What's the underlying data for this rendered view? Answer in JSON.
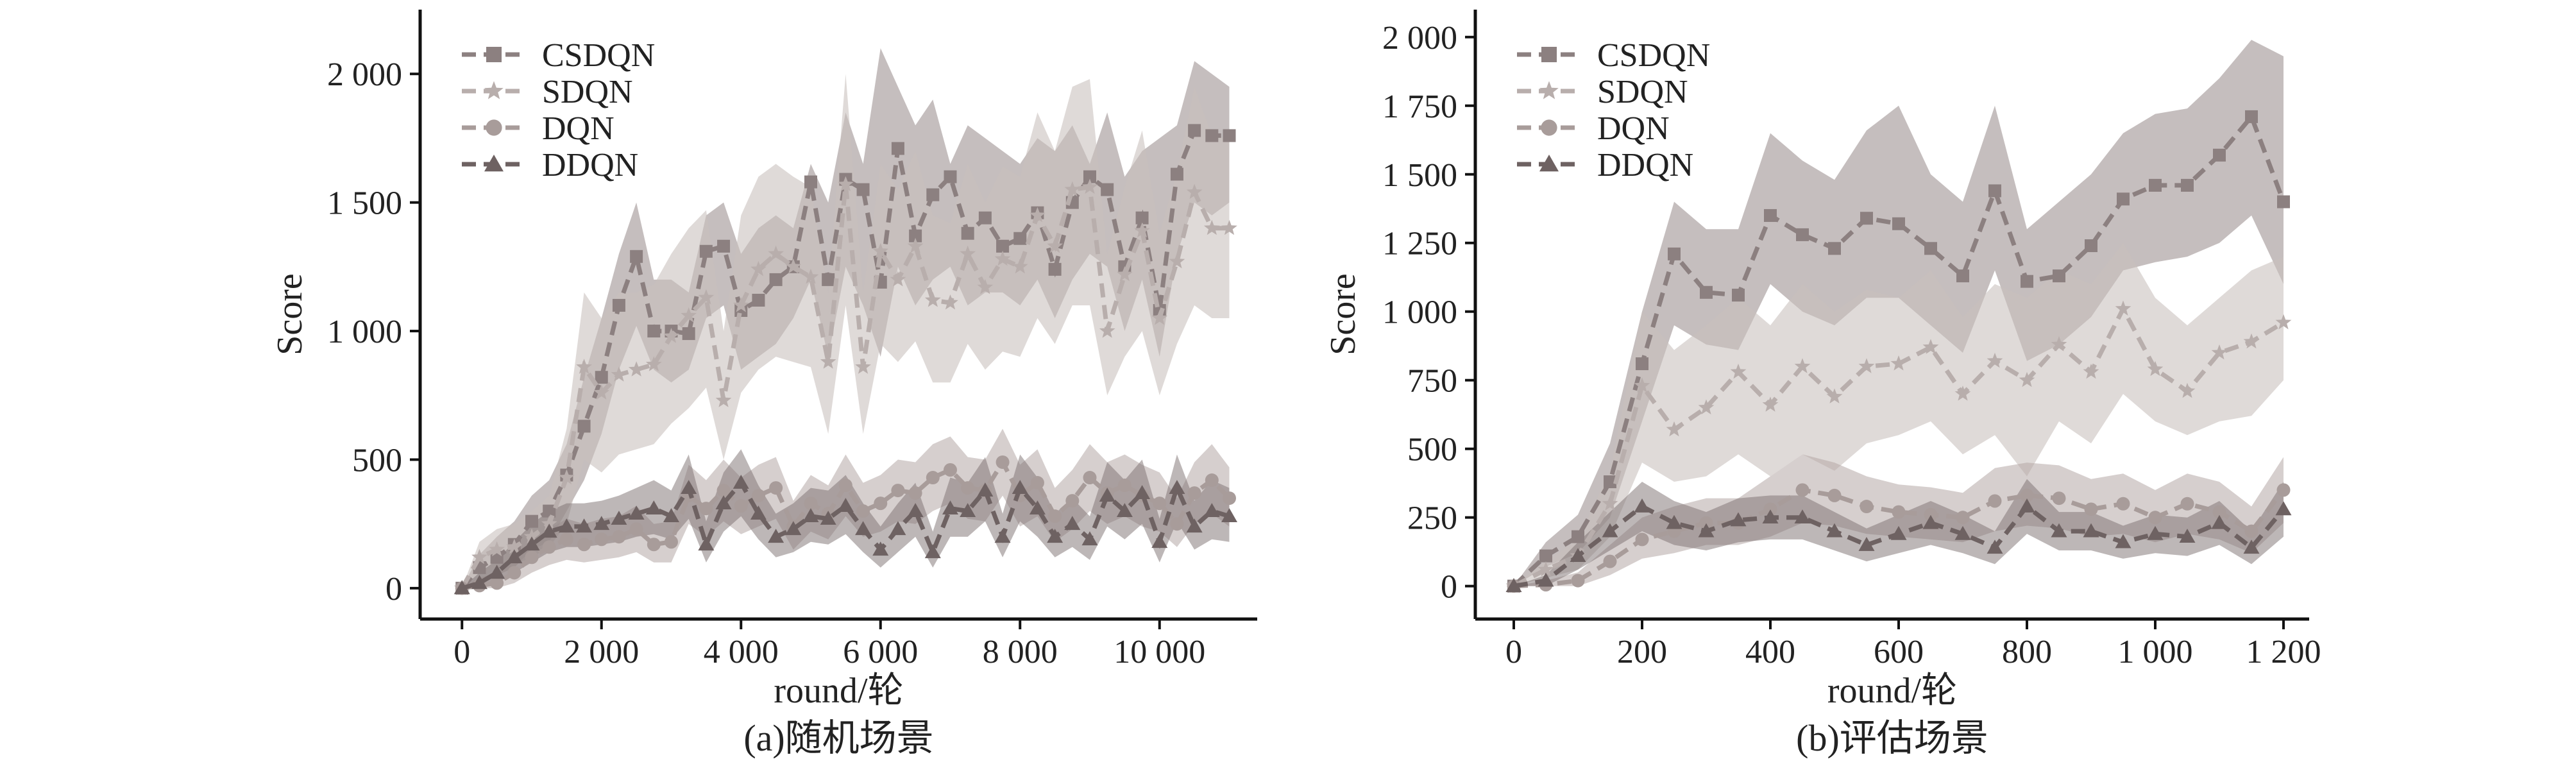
{
  "chart_data": [
    {
      "type": "line",
      "caption": "(a)随机场景",
      "xlabel": "round/轮",
      "ylabel": "Score",
      "xlim": [
        -600,
        11400
      ],
      "ylim": [
        -120,
        2250
      ],
      "xticks": [
        0,
        2000,
        4000,
        6000,
        8000,
        10000
      ],
      "xtick_labels": [
        "0",
        "2 000",
        "4 000",
        "6 000",
        "8 000",
        "10 000"
      ],
      "yticks": [
        0,
        500,
        1000,
        1500,
        2000
      ],
      "ytick_labels": [
        "0",
        "500",
        "1 000",
        "1 500",
        "2 000"
      ],
      "legend": "top-left",
      "x": [
        0,
        250,
        500,
        750,
        1000,
        1250,
        1500,
        1750,
        2000,
        2250,
        2500,
        2750,
        3000,
        3250,
        3500,
        3750,
        4000,
        4250,
        4500,
        4750,
        5000,
        5250,
        5500,
        5750,
        6000,
        6250,
        6500,
        6750,
        7000,
        7250,
        7500,
        7750,
        8000,
        8250,
        8500,
        8750,
        9000,
        9250,
        9500,
        9750,
        10000,
        10250,
        10500,
        10750,
        11000
      ],
      "series": [
        {
          "name": "CSDQN",
          "marker": "square",
          "color": "#8c8080",
          "band": "#a29696",
          "band_opacity": 0.62,
          "values": [
            0,
            80,
            120,
            170,
            260,
            300,
            440,
            630,
            820,
            1100,
            1290,
            1000,
            1000,
            990,
            1310,
            1330,
            1080,
            1120,
            1200,
            1250,
            1580,
            1200,
            1590,
            1550,
            1190,
            1710,
            1370,
            1530,
            1600,
            1380,
            1440,
            1330,
            1360,
            1460,
            1240,
            1500,
            1600,
            1550,
            1250,
            1440,
            1080,
            1610,
            1780,
            1760,
            1760
          ],
          "band_low": [
            0,
            20,
            50,
            80,
            150,
            180,
            300,
            420,
            600,
            850,
            1020,
            850,
            800,
            850,
            1050,
            1100,
            850,
            900,
            950,
            1050,
            1200,
            900,
            1250,
            1100,
            900,
            1250,
            1100,
            1200,
            1250,
            1100,
            1150,
            1150,
            1100,
            1200,
            1050,
            1200,
            1300,
            1250,
            1000,
            1200,
            900,
            1300,
            1500,
            1450,
            1500
          ],
          "band_high": [
            0,
            130,
            200,
            260,
            360,
            420,
            560,
            820,
            1050,
            1300,
            1500,
            1200,
            1200,
            1150,
            1450,
            1500,
            1300,
            1400,
            1450,
            1400,
            1650,
            1500,
            1850,
            1650,
            2100,
            1950,
            1800,
            1900,
            1650,
            1800,
            1750,
            1700,
            1650,
            1750,
            1700,
            1800,
            1650,
            1850,
            1600,
            1700,
            1750,
            1800,
            2050,
            2000,
            1950
          ]
        },
        {
          "name": "SDQN",
          "marker": "star",
          "color": "#b8aeac",
          "band": "#c8bfbc",
          "band_opacity": 0.58,
          "values": [
            0,
            120,
            150,
            160,
            200,
            250,
            430,
            860,
            760,
            830,
            850,
            870,
            980,
            1060,
            1130,
            730,
            1100,
            1240,
            1300,
            1250,
            1210,
            880,
            1570,
            860,
            1310,
            1200,
            1330,
            1120,
            1110,
            1300,
            1170,
            1280,
            1250,
            1450,
            1330,
            1550,
            1560,
            1000,
            1220,
            1390,
            1050,
            1270,
            1540,
            1400,
            1400
          ],
          "band_low": [
            0,
            60,
            80,
            90,
            120,
            160,
            250,
            500,
            450,
            520,
            540,
            560,
            640,
            700,
            780,
            500,
            760,
            850,
            900,
            880,
            860,
            600,
            1100,
            600,
            950,
            880,
            960,
            800,
            800,
            950,
            850,
            920,
            900,
            1050,
            950,
            1100,
            1100,
            750,
            900,
            1000,
            750,
            950,
            1100,
            1050,
            1050
          ],
          "band_high": [
            0,
            180,
            230,
            250,
            300,
            360,
            620,
            1150,
            1050,
            1150,
            1150,
            1180,
            1300,
            1400,
            1470,
            1000,
            1450,
            1600,
            1650,
            1600,
            1560,
            1150,
            2000,
            1150,
            1650,
            1550,
            1700,
            1450,
            1420,
            1650,
            1500,
            1640,
            1600,
            1850,
            1700,
            1950,
            1980,
            1300,
            1560,
            1780,
            1380,
            1620,
            1950,
            1760,
            1750
          ]
        },
        {
          "name": "DQN",
          "marker": "circle",
          "color": "#a89c9a",
          "band": "#b4a8a6",
          "band_opacity": 0.55,
          "values": [
            0,
            10,
            20,
            60,
            120,
            160,
            190,
            170,
            190,
            200,
            230,
            170,
            180,
            360,
            310,
            380,
            320,
            360,
            390,
            240,
            330,
            290,
            400,
            300,
            330,
            380,
            370,
            430,
            460,
            390,
            380,
            490,
            360,
            410,
            280,
            340,
            430,
            370,
            400,
            360,
            330,
            250,
            370,
            420,
            350
          ],
          "band_low": [
            0,
            0,
            0,
            20,
            60,
            90,
            110,
            100,
            110,
            120,
            140,
            100,
            100,
            250,
            200,
            260,
            210,
            240,
            270,
            150,
            220,
            190,
            280,
            200,
            220,
            260,
            250,
            300,
            330,
            270,
            260,
            360,
            240,
            280,
            180,
            230,
            300,
            250,
            280,
            240,
            220,
            160,
            250,
            290,
            240
          ],
          "band_high": [
            0,
            40,
            60,
            110,
            180,
            230,
            270,
            250,
            270,
            280,
            320,
            250,
            260,
            480,
            420,
            500,
            430,
            480,
            510,
            340,
            440,
            400,
            520,
            410,
            440,
            500,
            490,
            560,
            590,
            510,
            500,
            620,
            480,
            540,
            390,
            460,
            560,
            490,
            520,
            480,
            450,
            350,
            490,
            560,
            470
          ]
        },
        {
          "name": "DDQN",
          "marker": "triangle",
          "color": "#6e6262",
          "band": "#7c7070",
          "band_opacity": 0.5,
          "values": [
            0,
            20,
            60,
            120,
            170,
            220,
            240,
            240,
            250,
            270,
            290,
            310,
            280,
            390,
            170,
            330,
            410,
            290,
            200,
            230,
            280,
            270,
            320,
            230,
            150,
            230,
            300,
            140,
            310,
            300,
            380,
            200,
            390,
            310,
            200,
            250,
            190,
            360,
            300,
            370,
            180,
            390,
            240,
            300,
            280
          ],
          "band_low": [
            0,
            0,
            20,
            60,
            100,
            140,
            160,
            160,
            170,
            180,
            200,
            210,
            190,
            270,
            100,
            220,
            280,
            190,
            120,
            140,
            180,
            170,
            210,
            140,
            80,
            140,
            200,
            80,
            200,
            200,
            260,
            120,
            260,
            200,
            120,
            160,
            110,
            240,
            190,
            250,
            100,
            260,
            150,
            190,
            180
          ],
          "band_high": [
            0,
            60,
            110,
            180,
            250,
            300,
            330,
            330,
            340,
            360,
            390,
            420,
            380,
            520,
            260,
            450,
            540,
            400,
            290,
            330,
            390,
            380,
            440,
            330,
            240,
            330,
            410,
            220,
            430,
            410,
            510,
            290,
            520,
            430,
            290,
            350,
            280,
            490,
            420,
            500,
            270,
            520,
            340,
            420,
            390
          ]
        }
      ]
    },
    {
      "type": "line",
      "caption": "(b)评估场景",
      "xlabel": "round/轮",
      "ylabel": "Score",
      "xlim": [
        -60,
        1240
      ],
      "ylim": [
        -120,
        2100
      ],
      "xticks": [
        0,
        200,
        400,
        600,
        800,
        1000,
        1200
      ],
      "xtick_labels": [
        "0",
        "200",
        "400",
        "600",
        "800",
        "1 000",
        "1 200"
      ],
      "yticks": [
        0,
        250,
        500,
        750,
        1000,
        1250,
        1500,
        1750,
        2000
      ],
      "ytick_labels": [
        "0",
        "250",
        "500",
        "750",
        "1 000",
        "1 250",
        "1 500",
        "1 750",
        "2 000"
      ],
      "legend": "top-left",
      "x": [
        0,
        50,
        100,
        150,
        200,
        250,
        300,
        350,
        400,
        450,
        500,
        550,
        600,
        650,
        700,
        750,
        800,
        850,
        900,
        950,
        1000,
        1050,
        1100,
        1150,
        1200
      ],
      "series": [
        {
          "name": "CSDQN",
          "marker": "square",
          "color": "#8c8080",
          "band": "#a29696",
          "band_opacity": 0.62,
          "values": [
            0,
            110,
            180,
            380,
            810,
            1210,
            1070,
            1060,
            1350,
            1280,
            1230,
            1340,
            1320,
            1230,
            1130,
            1440,
            1110,
            1130,
            1240,
            1410,
            1460,
            1460,
            1570,
            1710,
            1400
          ],
          "band_low": [
            0,
            70,
            120,
            250,
            600,
            950,
            880,
            860,
            1100,
            1000,
            950,
            1050,
            1050,
            950,
            850,
            1150,
            820,
            880,
            980,
            1150,
            1180,
            1200,
            1250,
            1350,
            1100
          ],
          "band_high": [
            0,
            160,
            260,
            520,
            1000,
            1400,
            1300,
            1300,
            1650,
            1550,
            1480,
            1660,
            1750,
            1500,
            1400,
            1750,
            1300,
            1400,
            1500,
            1650,
            1720,
            1740,
            1850,
            1990,
            1930
          ]
        },
        {
          "name": "SDQN",
          "marker": "star",
          "color": "#b8aeac",
          "band": "#c8bfbc",
          "band_opacity": 0.58,
          "values": [
            0,
            60,
            110,
            300,
            730,
            570,
            650,
            780,
            660,
            800,
            690,
            800,
            810,
            870,
            700,
            820,
            750,
            880,
            780,
            1010,
            790,
            710,
            850,
            890,
            960
          ],
          "band_low": [
            0,
            30,
            60,
            180,
            450,
            380,
            400,
            480,
            400,
            480,
            420,
            520,
            550,
            600,
            480,
            550,
            400,
            600,
            520,
            700,
            600,
            550,
            600,
            620,
            750
          ],
          "band_high": [
            0,
            90,
            170,
            420,
            1000,
            860,
            950,
            1050,
            950,
            1100,
            1000,
            1080,
            1050,
            1150,
            980,
            1100,
            1050,
            1150,
            1100,
            1250,
            1050,
            950,
            1050,
            1150,
            1200
          ]
        },
        {
          "name": "DQN",
          "marker": "circle",
          "color": "#a89c9a",
          "band": "#b4a8a6",
          "band_opacity": 0.55,
          "values": [
            0,
            5,
            20,
            90,
            170,
            200,
            230,
            230,
            280,
            350,
            330,
            290,
            270,
            260,
            250,
            310,
            330,
            320,
            280,
            300,
            250,
            300,
            270,
            200,
            350
          ],
          "band_low": [
            0,
            0,
            0,
            40,
            100,
            120,
            150,
            150,
            180,
            230,
            220,
            190,
            180,
            170,
            160,
            200,
            220,
            210,
            180,
            190,
            160,
            190,
            170,
            120,
            230
          ],
          "band_high": [
            0,
            20,
            50,
            150,
            250,
            290,
            320,
            320,
            400,
            480,
            450,
            400,
            370,
            360,
            340,
            430,
            450,
            440,
            390,
            410,
            350,
            410,
            380,
            290,
            470
          ]
        },
        {
          "name": "DDQN",
          "marker": "triangle",
          "color": "#6e6262",
          "band": "#7c7070",
          "band_opacity": 0.5,
          "values": [
            0,
            20,
            110,
            200,
            290,
            230,
            200,
            240,
            250,
            250,
            200,
            150,
            190,
            230,
            190,
            140,
            290,
            200,
            200,
            160,
            190,
            180,
            230,
            140,
            280
          ],
          "band_low": [
            0,
            0,
            60,
            130,
            200,
            150,
            130,
            160,
            170,
            170,
            130,
            90,
            120,
            150,
            120,
            80,
            190,
            130,
            130,
            100,
            120,
            110,
            150,
            80,
            180
          ],
          "band_high": [
            0,
            40,
            160,
            270,
            380,
            310,
            270,
            320,
            330,
            330,
            270,
            210,
            260,
            310,
            260,
            200,
            390,
            270,
            270,
            220,
            260,
            250,
            310,
            200,
            380
          ]
        }
      ]
    }
  ]
}
